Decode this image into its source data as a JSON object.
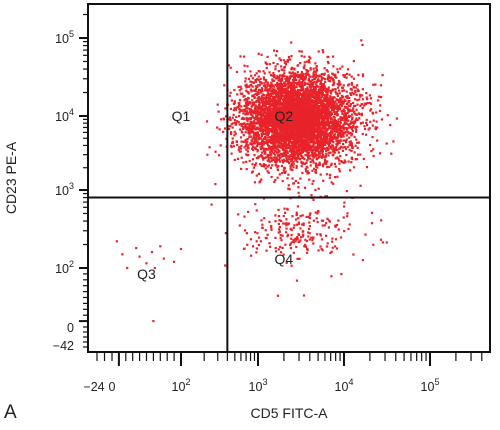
{
  "panel_label": "A",
  "chart_data": {
    "type": "scatter",
    "title": "",
    "xlabel": "CD5 FITC-A",
    "ylabel": "CD23 PE-A",
    "x_scale": "biexponential",
    "y_scale": "biexponential",
    "xlim": [
      -40,
      300000
    ],
    "ylim": [
      -42,
      300000
    ],
    "grid": false,
    "legend": "none",
    "x_ticks": [
      {
        "value": -24,
        "base": "−24",
        "exp": ""
      },
      {
        "value": 0,
        "base": "0",
        "exp": ""
      },
      {
        "value": 100,
        "base": "10",
        "exp": "2"
      },
      {
        "value": 1000,
        "base": "10",
        "exp": "3"
      },
      {
        "value": 10000,
        "base": "10",
        "exp": "4"
      },
      {
        "value": 100000,
        "base": "10",
        "exp": "5"
      }
    ],
    "y_ticks": [
      {
        "value": -42,
        "base": "−42",
        "exp": ""
      },
      {
        "value": 0,
        "base": "0",
        "exp": ""
      },
      {
        "value": 100,
        "base": "10",
        "exp": "2"
      },
      {
        "value": 1000,
        "base": "10",
        "exp": "3"
      },
      {
        "value": 10000,
        "base": "10",
        "exp": "4"
      },
      {
        "value": 100000,
        "base": "10",
        "exp": "5"
      }
    ],
    "gates": {
      "x": 400,
      "y": 800
    },
    "quadrants": [
      {
        "label": "Q1",
        "x": 100,
        "y": 10000
      },
      {
        "label": "Q2",
        "x": 2000,
        "y": 10000
      },
      {
        "label": "Q3",
        "x": 50,
        "y": 90
      },
      {
        "label": "Q4",
        "x": 2000,
        "y": 130
      }
    ],
    "point_color": "#e8232a",
    "series": [
      {
        "population": "Q2 main cluster",
        "count": 5200,
        "center": [
          2800,
          9000
        ],
        "spread_decades": [
          0.32,
          0.3
        ]
      },
      {
        "population": "Q2 upper-right tail",
        "count": 120,
        "center": [
          9000,
          11000
        ],
        "spread_decades": [
          0.28,
          0.25
        ]
      },
      {
        "population": "Q4 scattered events",
        "count": 230,
        "center": [
          3000,
          300
        ],
        "spread_decades": [
          0.35,
          0.22
        ]
      },
      {
        "population": "Q3 sparse events",
        "points": [
          [
            7,
            220
          ],
          [
            15,
            150
          ],
          [
            22,
            100
          ],
          [
            35,
            180
          ],
          [
            40,
            140
          ],
          [
            50,
            115
          ],
          [
            58,
            160
          ],
          [
            62,
            100
          ],
          [
            70,
            190
          ],
          [
            75,
            132
          ],
          [
            90,
            120
          ],
          [
            100,
            175
          ],
          [
            60,
            10
          ]
        ]
      },
      {
        "population": "Q1 sparse events",
        "points": [
          [
            220,
            3000
          ],
          [
            250,
            650
          ],
          [
            300,
            14000
          ],
          [
            280,
            1200
          ]
        ]
      }
    ]
  }
}
